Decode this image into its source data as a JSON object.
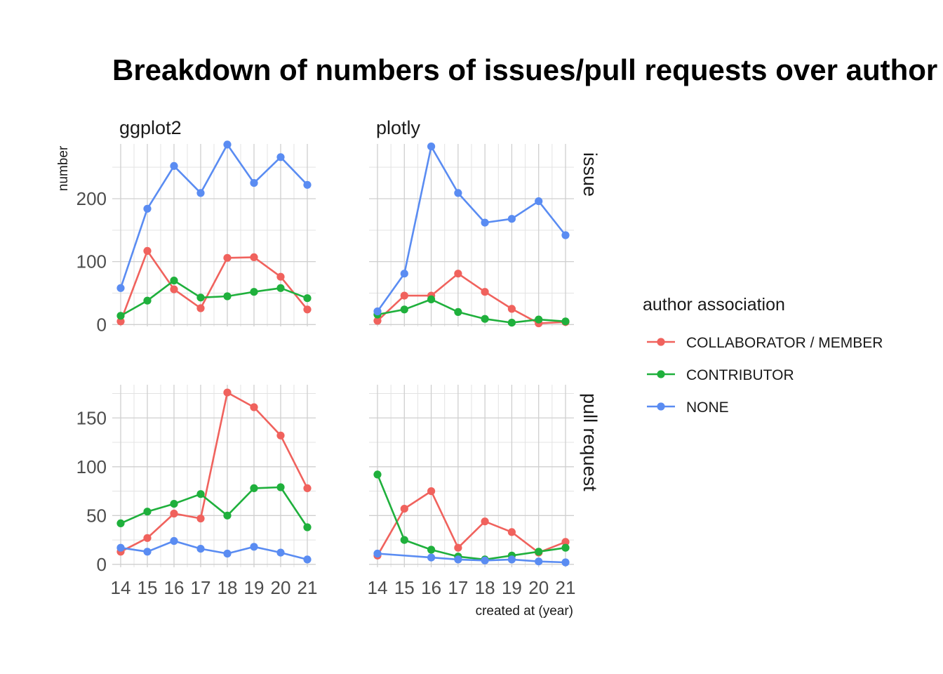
{
  "chart_data": {
    "type": "line",
    "title": "Breakdown of numbers of issues/pull requests over author association",
    "xlabel": "created at (year)",
    "ylabel": "number",
    "x": [
      14,
      15,
      16,
      17,
      18,
      19,
      20,
      21
    ],
    "x_tick_labels": [
      "14",
      "15",
      "16",
      "17",
      "18",
      "19",
      "20",
      "21"
    ],
    "column_facets": [
      "ggplot2",
      "plotly"
    ],
    "row_facets": [
      "issue",
      "pull request"
    ],
    "rows": [
      {
        "name": "issue",
        "ylim": [
          -3,
          287
        ],
        "y_ticks": [
          0,
          100,
          200
        ],
        "y_tick_labels": [
          "0",
          "100",
          "200"
        ],
        "panels": [
          {
            "name": "ggplot2",
            "series": [
              {
                "name": "COLLABORATOR / MEMBER",
                "values": [
                  5,
                  117,
                  56,
                  26,
                  106,
                  107,
                  76,
                  24
                ]
              },
              {
                "name": "CONTRIBUTOR",
                "values": [
                  14,
                  38,
                  70,
                  43,
                  45,
                  52,
                  58,
                  42
                ]
              },
              {
                "name": "NONE",
                "values": [
                  58,
                  184,
                  252,
                  209,
                  286,
                  225,
                  266,
                  222
                ]
              }
            ]
          },
          {
            "name": "plotly",
            "series": [
              {
                "name": "COLLABORATOR / MEMBER",
                "values": [
                  6,
                  46,
                  46,
                  81,
                  52,
                  25,
                  2,
                  4
                ]
              },
              {
                "name": "CONTRIBUTOR",
                "values": [
                  16,
                  24,
                  40,
                  20,
                  9,
                  3,
                  8,
                  5
                ]
              },
              {
                "name": "NONE",
                "values": [
                  21,
                  81,
                  283,
                  209,
                  162,
                  168,
                  196,
                  142
                ]
              }
            ]
          }
        ]
      },
      {
        "name": "pull request",
        "ylim": [
          -3,
          184
        ],
        "y_ticks": [
          0,
          50,
          100,
          150
        ],
        "y_tick_labels": [
          "0",
          "50",
          "100",
          "150"
        ],
        "panels": [
          {
            "name": "ggplot2",
            "series": [
              {
                "name": "COLLABORATOR / MEMBER",
                "values": [
                  13,
                  27,
                  52,
                  47,
                  176,
                  161,
                  132,
                  78
                ]
              },
              {
                "name": "CONTRIBUTOR",
                "values": [
                  42,
                  54,
                  62,
                  72,
                  50,
                  78,
                  79,
                  38
                ]
              },
              {
                "name": "NONE",
                "values": [
                  17,
                  13,
                  24,
                  16,
                  11,
                  18,
                  12,
                  5
                ]
              }
            ]
          },
          {
            "name": "plotly",
            "series": [
              {
                "name": "COLLABORATOR / MEMBER",
                "values": [
                  9,
                  57,
                  75,
                  17,
                  44,
                  33,
                  12,
                  23
                ]
              },
              {
                "name": "CONTRIBUTOR",
                "values": [
                  92,
                  25,
                  15,
                  8,
                  5,
                  9,
                  13,
                  17
                ]
              },
              {
                "name": "NONE",
                "values": [
                  11,
                  null,
                  7,
                  5,
                  4,
                  5,
                  3,
                  2
                ]
              }
            ]
          }
        ]
      }
    ],
    "legend": {
      "title": "author association",
      "position": "right",
      "items": [
        {
          "name": "COLLABORATOR / MEMBER",
          "color": "#F0625D"
        },
        {
          "name": "CONTRIBUTOR",
          "color": "#1FB03C"
        },
        {
          "name": "NONE",
          "color": "#5A8CF2"
        }
      ]
    },
    "grid": true
  }
}
